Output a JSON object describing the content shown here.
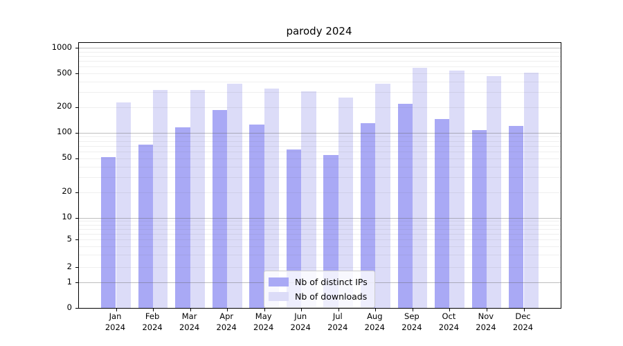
{
  "chart_data": {
    "type": "bar",
    "title": "parody 2024",
    "categories": [
      "Jan",
      "Feb",
      "Mar",
      "Apr",
      "May",
      "Jun",
      "Jul",
      "Aug",
      "Sep",
      "Oct",
      "Nov",
      "Dec"
    ],
    "x_year_label": "2024",
    "series": [
      {
        "name": "Nb of distinct IPs",
        "color": "#a9a9f5",
        "values": [
          51,
          72,
          115,
          185,
          124,
          63,
          54,
          128,
          218,
          145,
          107,
          119
        ]
      },
      {
        "name": "Nb of downloads",
        "color": "#dcdcf8",
        "values": [
          225,
          315,
          315,
          375,
          330,
          305,
          260,
          375,
          580,
          540,
          460,
          505
        ]
      }
    ],
    "yscale": "symlog",
    "yticks": [
      0,
      1,
      2,
      5,
      10,
      20,
      50,
      100,
      200,
      500,
      1000
    ],
    "ylim": [
      0,
      1150
    ],
    "grid": true,
    "legend_position": "lower center"
  },
  "colors": {
    "bar_distinct_ips": "#a9a9f5",
    "bar_downloads": "#dcdcf8",
    "major_grid": "#b4b4b4",
    "minor_grid": "#e9e9e9",
    "axis": "#000000",
    "background": "#ffffff"
  }
}
